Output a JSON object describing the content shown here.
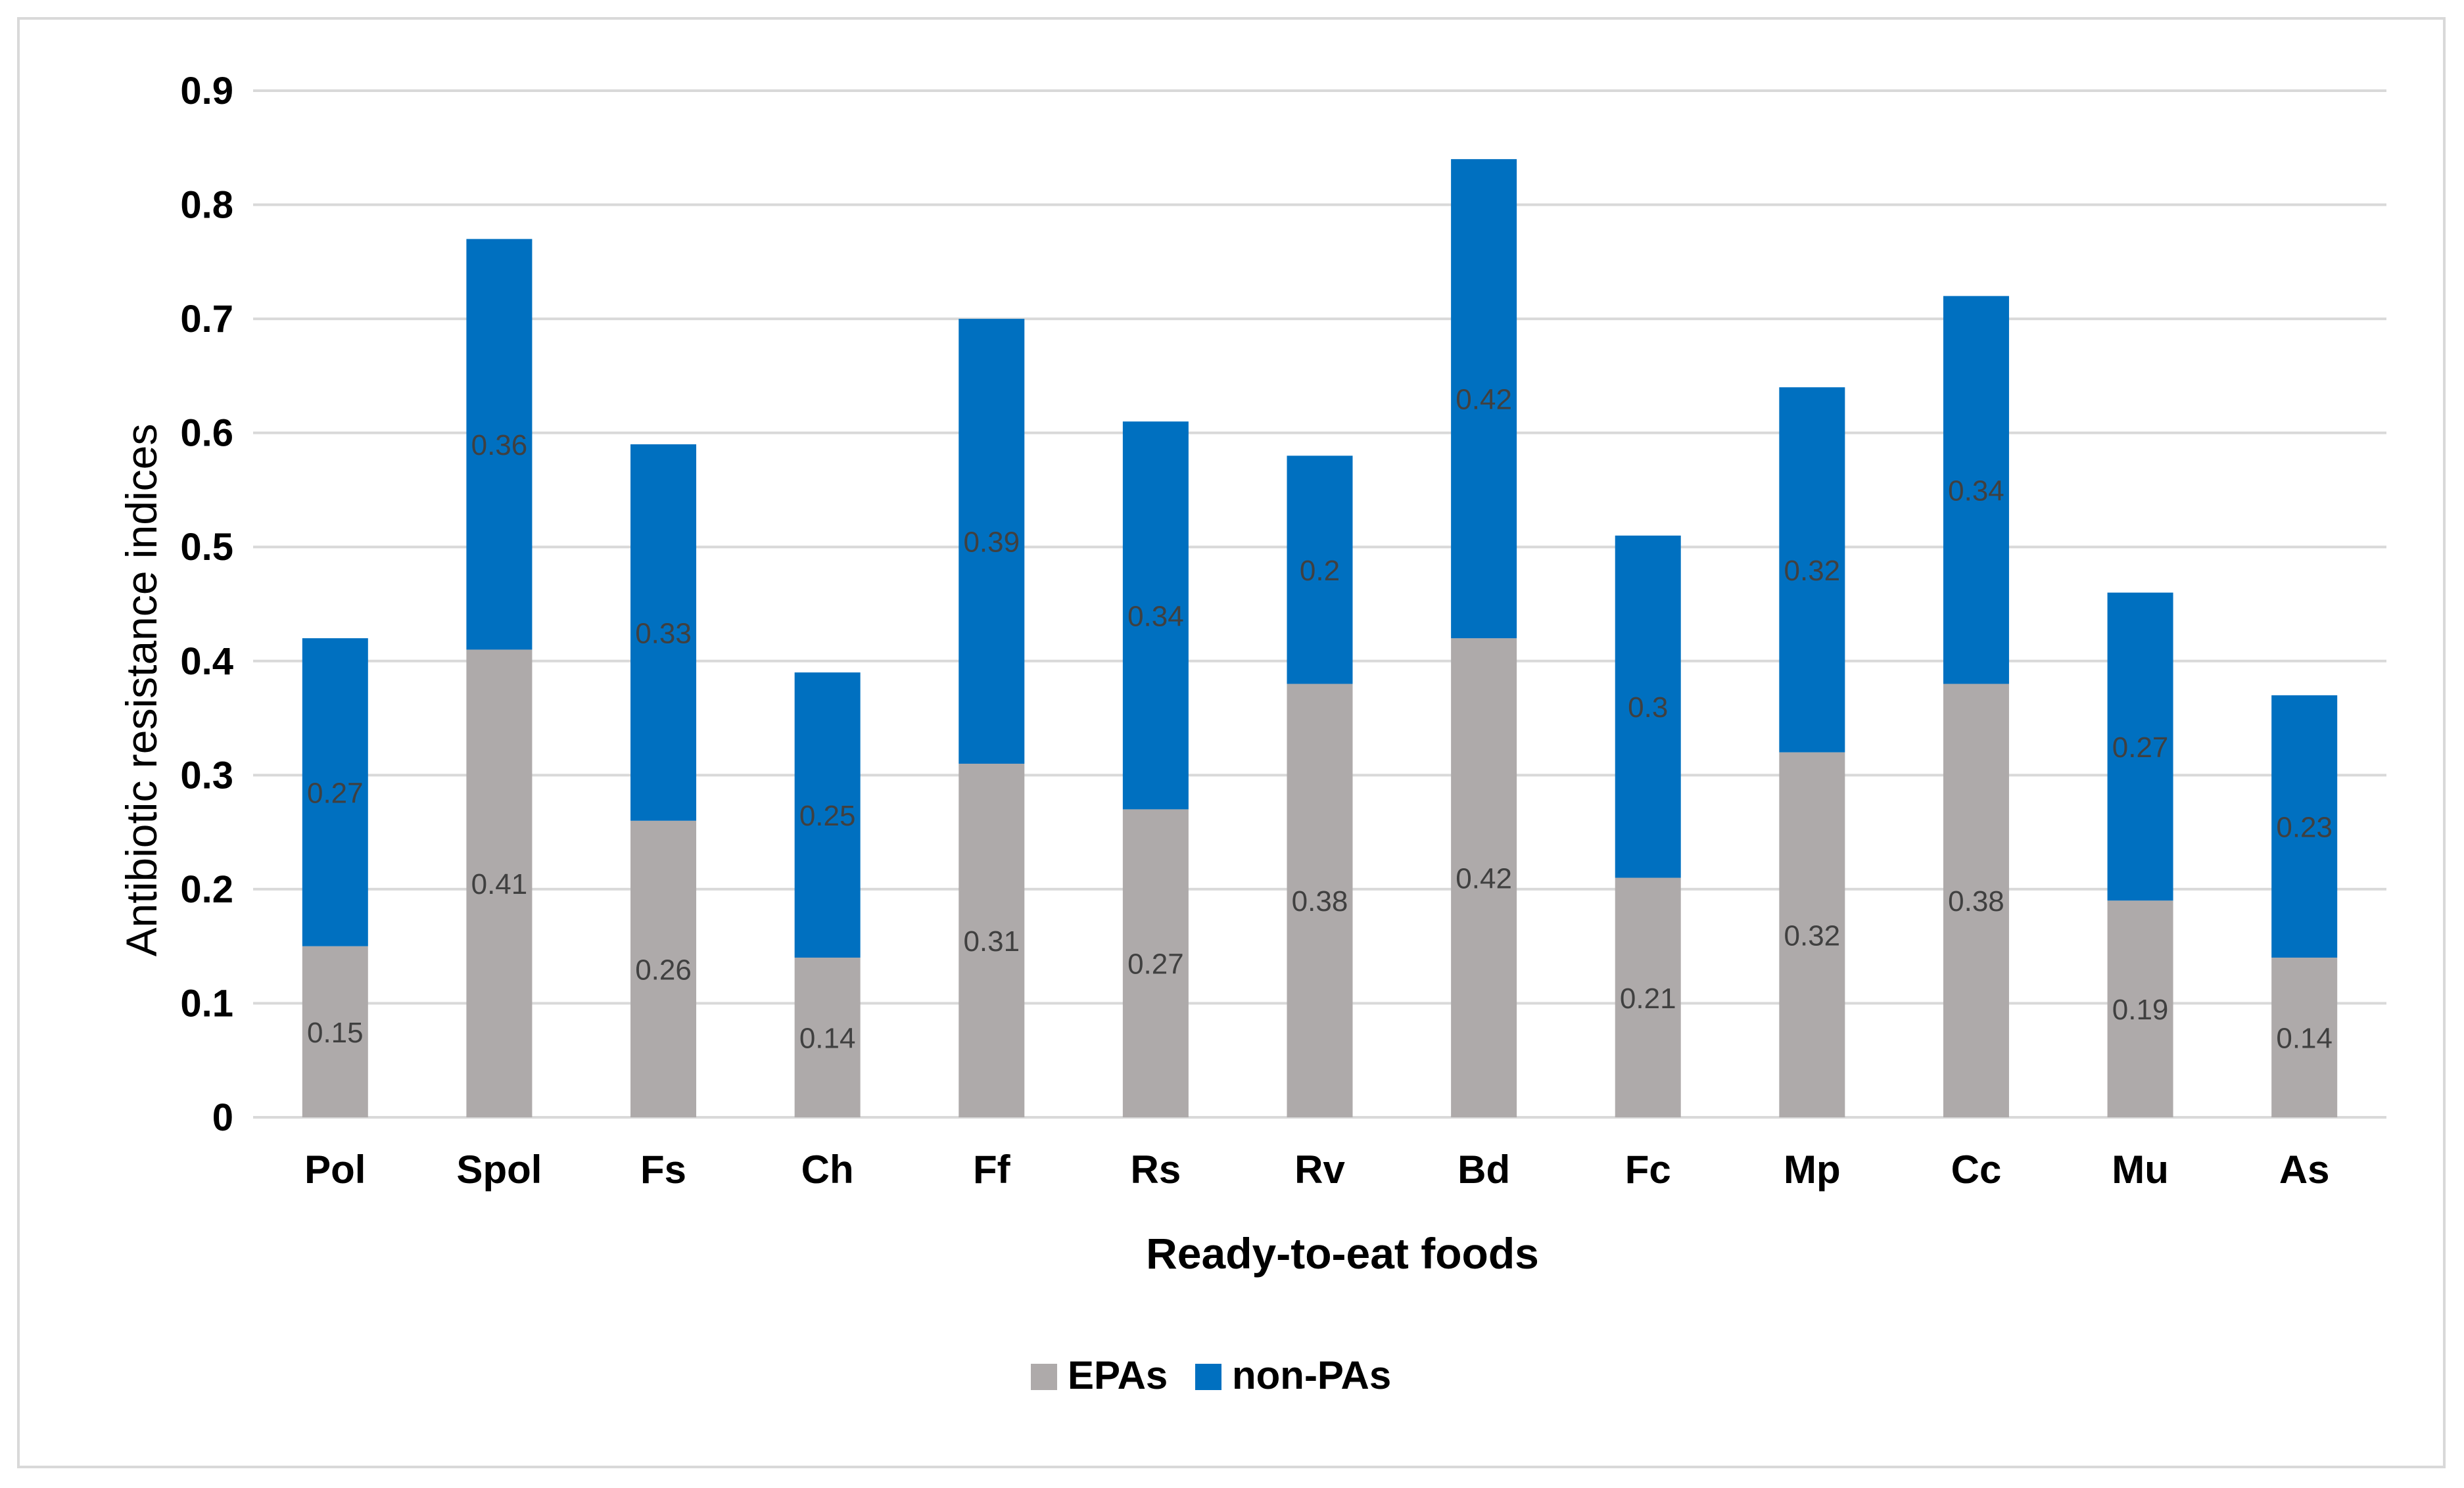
{
  "chart_data": {
    "type": "bar",
    "stacked": true,
    "title": "",
    "xlabel": "Ready-to-eat foods",
    "ylabel": "Antibiotic resistance indices",
    "ylim": [
      0,
      0.9
    ],
    "yticks": [
      "0",
      "0.1",
      "0.2",
      "0.3",
      "0.4",
      "0.5",
      "0.6",
      "0.7",
      "0.8",
      "0.9"
    ],
    "grid": true,
    "legend_position": "bottom",
    "categories": [
      "Pol",
      "Spol",
      "Fs",
      "Ch",
      "Ff",
      "Rs",
      "Rv",
      "Bd",
      "Fc",
      "Mp",
      "Cc",
      "Mu",
      "As"
    ],
    "series": [
      {
        "name": "EPAs",
        "color": "#aeaaaa",
        "values": [
          0.15,
          0.41,
          0.26,
          0.14,
          0.31,
          0.27,
          0.38,
          0.42,
          0.21,
          0.32,
          0.38,
          0.19,
          0.14
        ],
        "labels": [
          "0.15",
          "0.41",
          "0.26",
          "0.14",
          "0.31",
          "0.27",
          "0.38",
          "0.42",
          "0.21",
          "0.32",
          "0.38",
          "0.19",
          "0.14"
        ]
      },
      {
        "name": "non-PAs",
        "color": "#0070c0",
        "values": [
          0.27,
          0.36,
          0.33,
          0.25,
          0.39,
          0.34,
          0.2,
          0.42,
          0.3,
          0.32,
          0.34,
          0.27,
          0.23
        ],
        "labels": [
          "0.27",
          "0.36",
          "0.33",
          "0.25",
          "0.39",
          "0.34",
          "0.2",
          "0.42",
          "0.3",
          "0.32",
          "0.34",
          "0.27",
          "0.23"
        ]
      }
    ]
  }
}
